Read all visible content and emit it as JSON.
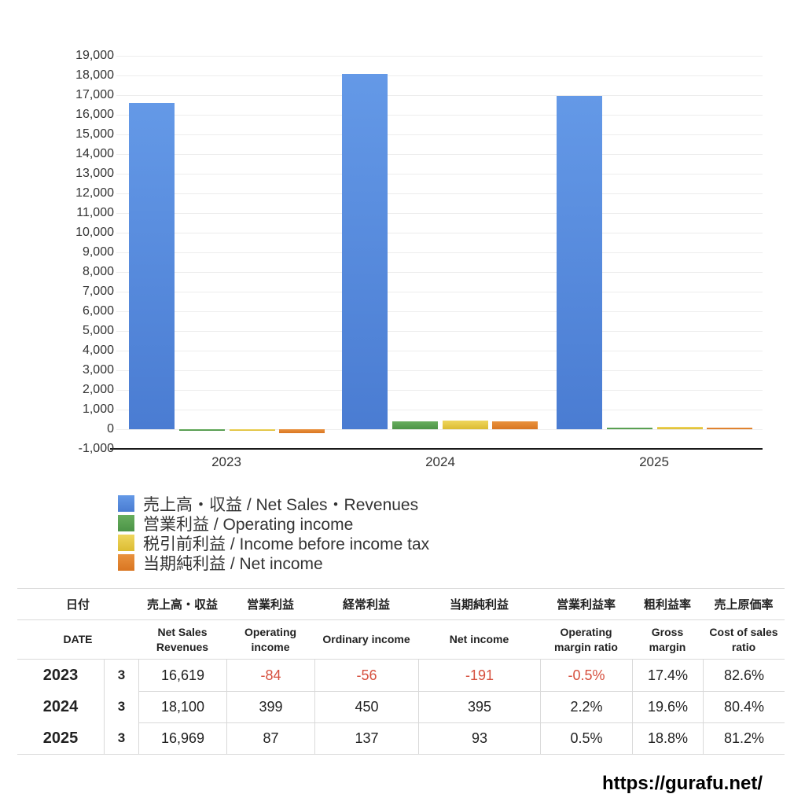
{
  "chart_data": {
    "type": "bar",
    "title": "",
    "categories": [
      "2023",
      "2024",
      "2025"
    ],
    "series": [
      {
        "name": "売上高・収益 / Net Sales・Revenues",
        "color": "#5389DC",
        "color_top": "#6499E7",
        "color_bottom": "#4A7CD2",
        "values": [
          16619,
          18100,
          16969
        ]
      },
      {
        "name": "営業利益 / Operating income",
        "color": "#57A14F",
        "color_top": "#68AE5E",
        "color_bottom": "#4C9447",
        "values": [
          -84,
          399,
          87
        ]
      },
      {
        "name": "税引前利益 / Income before income tax",
        "color": "#E6C945",
        "color_top": "#EFD65E",
        "color_bottom": "#DCBC32",
        "values": [
          -56,
          450,
          137
        ]
      },
      {
        "name": "当期純利益 / Net income",
        "color": "#E0832D",
        "color_top": "#E9923E",
        "color_bottom": "#D97622",
        "values": [
          -191,
          395,
          93
        ]
      }
    ],
    "ylim": [
      -1000,
      19000
    ],
    "y_step": 1000,
    "y_tick_labels": [
      "19,000",
      "18,000",
      "17,000",
      "16,000",
      "15,000",
      "14,000",
      "13,000",
      "12,000",
      "11,000",
      "10,000",
      "9,000",
      "8,000",
      "7,000",
      "6,000",
      "5,000",
      "4,000",
      "3,000",
      "2,000",
      "1,000",
      "0",
      "-1,000"
    ],
    "grid": true,
    "legend_position": "bottom-left",
    "grid_color": "#EDEDED",
    "axis_color": "#1A1A1A"
  },
  "table": {
    "headers_ja": [
      "日付",
      "売上高・収益",
      "営業利益",
      "経常利益",
      "当期純利益",
      "営業利益率",
      "粗利益率",
      "売上原価率"
    ],
    "headers_en": [
      "DATE",
      "Net Sales\nRevenues",
      "Operating\nincome",
      "Ordinary income",
      "Net income",
      "Operating\nmargin ratio",
      "Gross margin",
      "Cost of sales\nratio"
    ],
    "rows": [
      {
        "year": "2023",
        "month": "3",
        "values": [
          "16,619",
          "-84",
          "-56",
          "-191",
          "-0.5%",
          "17.4%",
          "82.6%"
        ]
      },
      {
        "year": "2024",
        "month": "3",
        "values": [
          "18,100",
          "399",
          "450",
          "395",
          "2.2%",
          "19.6%",
          "80.4%"
        ]
      },
      {
        "year": "2025",
        "month": "3",
        "values": [
          "16,969",
          "87",
          "137",
          "93",
          "0.5%",
          "18.8%",
          "81.2%"
        ]
      }
    ],
    "negative_color": "#D6503E"
  },
  "footer": {
    "url": "https://gurafu.net/"
  }
}
